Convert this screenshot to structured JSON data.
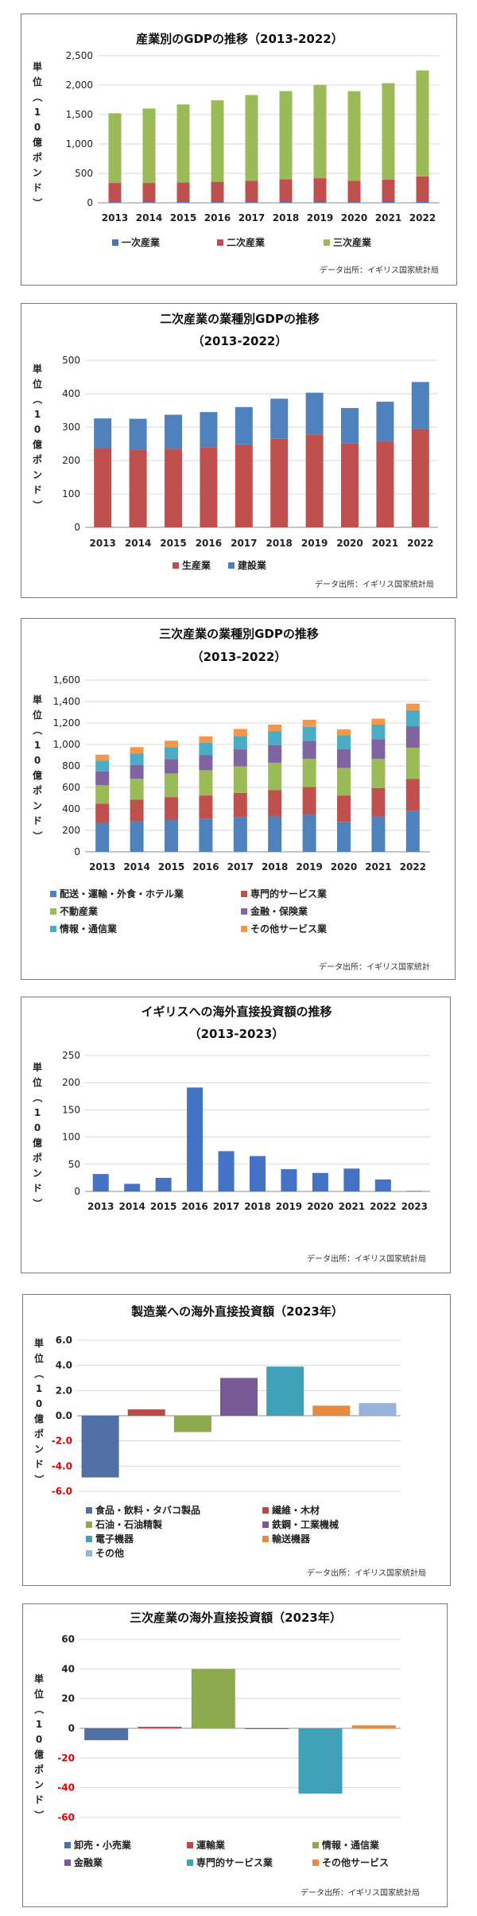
{
  "chart_data": [
    {
      "type": "bar",
      "stacked": true,
      "title": "産業別のGDPの推移（2013-2022）",
      "ylabel": "単位（10億ポンド）",
      "source": "データ出所：イギリス国家統計局",
      "categories": [
        "2013",
        "2014",
        "2015",
        "2016",
        "2017",
        "2018",
        "2019",
        "2020",
        "2021",
        "2022"
      ],
      "yticks": [
        "0",
        "500",
        "1,000",
        "1,500",
        "2,000",
        "2,500"
      ],
      "ylim": [
        0,
        2500
      ],
      "legend_position": "bottom",
      "series": [
        {
          "name": "一次産業",
          "color": "#4472C4",
          "values": [
            12,
            12,
            12,
            12,
            12,
            13,
            13,
            12,
            13,
            14
          ]
        },
        {
          "name": "二次産業",
          "color": "#C0504D",
          "values": [
            325,
            325,
            335,
            345,
            360,
            385,
            405,
            360,
            380,
            435
          ]
        },
        {
          "name": "三次産業",
          "color": "#9BBB59",
          "values": [
            1185,
            1265,
            1325,
            1385,
            1460,
            1500,
            1585,
            1525,
            1640,
            1800
          ]
        }
      ]
    },
    {
      "type": "bar",
      "stacked": true,
      "title": "二次産業の業種別GDPの推移",
      "subtitle": "（2013-2022）",
      "ylabel": "単位（10億ポンド）",
      "source": "データ出所：イギリス国家統計局",
      "categories": [
        "2013",
        "2014",
        "2015",
        "2016",
        "2017",
        "2018",
        "2019",
        "2020",
        "2021",
        "2022"
      ],
      "yticks": [
        "0",
        "100",
        "200",
        "300",
        "400",
        "500"
      ],
      "ylim": [
        0,
        500
      ],
      "legend_position": "bottom",
      "series": [
        {
          "name": "生産業",
          "color": "#C0504D",
          "values": [
            238,
            233,
            235,
            240,
            248,
            265,
            278,
            252,
            258,
            295
          ]
        },
        {
          "name": "建設業",
          "color": "#4F81BD",
          "values": [
            88,
            92,
            102,
            105,
            112,
            120,
            125,
            105,
            118,
            140
          ]
        }
      ]
    },
    {
      "type": "bar",
      "stacked": true,
      "title": "三次産業の業種別GDPの推移",
      "subtitle": "（2013-2022）",
      "ylabel": "単位（10億ポンド）",
      "source": "データ出所：イギリス国家統計",
      "categories": [
        "2013",
        "2014",
        "2015",
        "2016",
        "2017",
        "2018",
        "2019",
        "2020",
        "2021",
        "2022"
      ],
      "yticks": [
        "0",
        "200",
        "400",
        "600",
        "800",
        "1,000",
        "1,200",
        "1,400",
        "1,600"
      ],
      "ylim": [
        0,
        1600
      ],
      "legend_position": "bottom",
      "series": [
        {
          "name": "配送・運輸・外食・ホテル業",
          "color": "#4F81BD",
          "values": [
            270,
            285,
            300,
            310,
            320,
            330,
            345,
            280,
            330,
            380
          ]
        },
        {
          "name": "専門的サービス業",
          "color": "#C0504D",
          "values": [
            180,
            200,
            210,
            215,
            230,
            245,
            260,
            245,
            265,
            300
          ]
        },
        {
          "name": "不動産業",
          "color": "#9BBB59",
          "values": [
            170,
            195,
            220,
            235,
            245,
            255,
            260,
            255,
            270,
            290
          ]
        },
        {
          "name": "金融・保険業",
          "color": "#8064A2",
          "values": [
            130,
            130,
            135,
            140,
            160,
            165,
            170,
            175,
            185,
            200
          ]
        },
        {
          "name": "情報・通信業",
          "color": "#4BACC6",
          "values": [
            100,
            105,
            110,
            115,
            125,
            130,
            130,
            130,
            135,
            150
          ]
        },
        {
          "name": "その他サービス業",
          "color": "#F79646",
          "values": [
            55,
            60,
            60,
            60,
            65,
            60,
            65,
            55,
            55,
            60
          ]
        }
      ]
    },
    {
      "type": "bar",
      "title": "イギリスへの海外直接投資額の推移",
      "subtitle": "（2013-2023）",
      "ylabel": "単位（10億ポンド）",
      "source": "データ出所：イギリス国家統計局",
      "categories": [
        "2013",
        "2014",
        "2015",
        "2016",
        "2017",
        "2018",
        "2019",
        "2020",
        "2021",
        "2022",
        "2023"
      ],
      "yticks": [
        "0",
        "50",
        "100",
        "150",
        "200",
        "250"
      ],
      "ylim": [
        0,
        250
      ],
      "series": [
        {
          "color": "#4472C4",
          "values": [
            32,
            14,
            25,
            191,
            74,
            65,
            41,
            34,
            42,
            22,
            1
          ]
        }
      ]
    },
    {
      "type": "bar",
      "title": "製造業への海外直接投資額（2023年）",
      "ylabel": "単位（10億ポンド）",
      "source": "データ出所：イギリス国家統計局",
      "yticks": [
        "-6.0",
        "-4.0",
        "-2.0",
        "0.0",
        "2.0",
        "4.0",
        "6.0"
      ],
      "ylim": [
        -6,
        6
      ],
      "legend_position": "bottom",
      "series": [
        {
          "name": "食品・飲料・タバコ製品",
          "color": "#4F6FA5",
          "values": [
            -4.9
          ]
        },
        {
          "name": "繊維・木材",
          "color": "#B94A48",
          "values": [
            0.5
          ]
        },
        {
          "name": "石油・石油精製",
          "color": "#8EAA4F",
          "values": [
            -1.3
          ]
        },
        {
          "name": "鉄鋼・工業機械",
          "color": "#765995",
          "values": [
            3.0
          ]
        },
        {
          "name": "電子機器",
          "color": "#3EA1B8",
          "values": [
            3.9
          ]
        },
        {
          "name": "輸送機器",
          "color": "#E8893D",
          "values": [
            0.8
          ]
        },
        {
          "name": "その他",
          "color": "#98B2DA",
          "values": [
            1.0
          ]
        }
      ]
    },
    {
      "type": "bar",
      "title": "三次産業の海外直接投資額（2023年）",
      "ylabel": "単位（10億ポンド）",
      "source": "データ出所：イギリス国家統計局",
      "yticks": [
        "-60",
        "-40",
        "-20",
        "0",
        "20",
        "40",
        "60"
      ],
      "ylim": [
        -60,
        60
      ],
      "legend_position": "bottom",
      "series": [
        {
          "name": "卸売・小売業",
          "color": "#4F6FA5",
          "values": [
            -8
          ]
        },
        {
          "name": "運輸業",
          "color": "#B94A48",
          "values": [
            1
          ]
        },
        {
          "name": "情報・通信業",
          "color": "#8EAA4F",
          "values": [
            40
          ]
        },
        {
          "name": "金融業",
          "color": "#765995",
          "values": [
            -0.5
          ]
        },
        {
          "name": "専門的サービス業",
          "color": "#3EA1B8",
          "values": [
            -44
          ]
        },
        {
          "name": "その他サービス",
          "color": "#E8893D",
          "values": [
            2
          ]
        }
      ]
    }
  ]
}
